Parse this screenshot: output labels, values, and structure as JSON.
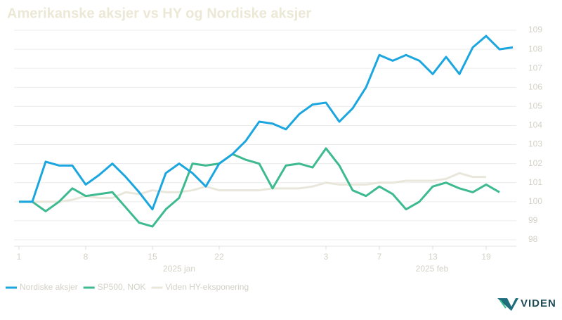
{
  "chart_data": {
    "type": "line",
    "title": "Amerikanske aksjer vs HY og Nordiske aksjer",
    "categories": [
      "1",
      null,
      null,
      null,
      null,
      "8",
      null,
      null,
      null,
      null,
      "15",
      null,
      null,
      null,
      null,
      "22",
      null,
      null,
      null,
      null,
      null,
      null,
      null,
      "3",
      null,
      null,
      null,
      "7",
      null,
      null,
      null,
      "13",
      null,
      null,
      null,
      "19",
      null,
      null
    ],
    "month_labels": [
      "2025 jan",
      "2025 feb"
    ],
    "series": [
      {
        "name": "Nordiske aksjer",
        "color": "#1ba6e0",
        "values": [
          100.0,
          100.0,
          102.1,
          101.9,
          101.9,
          100.9,
          101.4,
          102.0,
          101.3,
          100.5,
          99.6,
          101.5,
          102.0,
          101.5,
          100.8,
          102.0,
          102.5,
          103.2,
          104.2,
          104.1,
          103.8,
          104.6,
          105.1,
          105.2,
          104.2,
          104.9,
          106.0,
          107.7,
          107.4,
          107.7,
          107.4,
          106.7,
          107.6,
          106.7,
          108.1,
          108.7,
          108.0,
          108.1
        ]
      },
      {
        "name": "SP500, NOK",
        "color": "#3dba8f",
        "values": [
          100.0,
          100.0,
          99.5,
          100.0,
          100.7,
          100.3,
          100.4,
          100.5,
          99.7,
          98.9,
          98.7,
          99.6,
          100.2,
          102.0,
          101.9,
          102.0,
          102.5,
          102.2,
          102.0,
          100.7,
          101.9,
          102.0,
          101.8,
          102.8,
          101.9,
          100.6,
          100.3,
          100.8,
          100.4,
          99.6,
          100.0,
          100.8,
          101.0,
          100.7,
          100.5,
          100.9,
          100.5,
          null
        ]
      },
      {
        "name": "Viden HY-eksponering",
        "color": "#e9e7dc",
        "values": [
          100.0,
          100.0,
          100.0,
          100.0,
          100.1,
          100.3,
          100.2,
          100.2,
          100.5,
          100.4,
          100.6,
          100.5,
          100.5,
          100.6,
          100.8,
          100.6,
          100.6,
          100.6,
          100.6,
          100.7,
          100.7,
          100.7,
          100.8,
          101.0,
          100.9,
          100.9,
          100.9,
          101.0,
          101.0,
          101.1,
          101.1,
          101.1,
          101.2,
          101.5,
          101.3,
          101.3,
          null,
          null
        ]
      }
    ],
    "ylim": [
      98,
      109
    ],
    "yticks": [
      98,
      99,
      100,
      101,
      102,
      103,
      104,
      105,
      106,
      107,
      108,
      109
    ],
    "grid": true,
    "legend": "bottom",
    "logo": "VIDEN"
  }
}
